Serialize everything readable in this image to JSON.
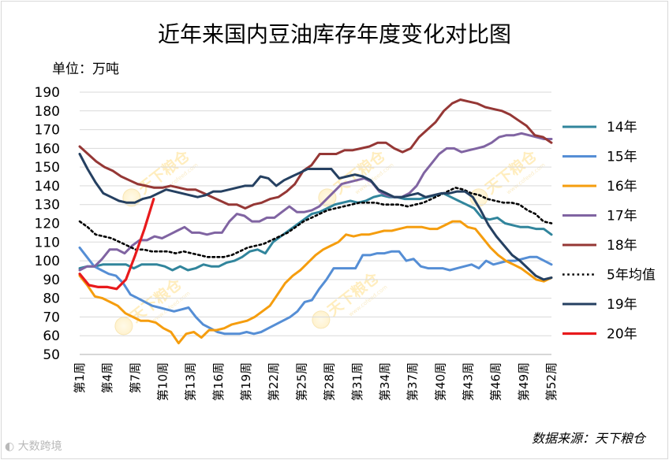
{
  "chart_data": {
    "type": "line",
    "title": "近年来国内豆油库存年度变化对比图",
    "unit_label": "单位：万吨",
    "source": "数据来源：天下粮仓",
    "watermark": "天下粮仓",
    "watermark_url": "www.cofeed.com",
    "corner_logo": "大数跨境",
    "ylim": [
      50,
      190
    ],
    "yticks": [
      50,
      60,
      70,
      80,
      90,
      100,
      110,
      120,
      130,
      140,
      150,
      160,
      170,
      180,
      190
    ],
    "xtick_labels": [
      "第1周",
      "第4周",
      "第7周",
      "第10周",
      "第13周",
      "第16周",
      "第19周",
      "第22周",
      "第25周",
      "第28周",
      "第31周",
      "第34周",
      "第37周",
      "第40周",
      "第43周",
      "第46周",
      "第49周",
      "第52周"
    ],
    "legend_position": "right",
    "series": [
      {
        "name": "14年",
        "color": "#31859c",
        "width": 3,
        "dash": "",
        "values": [
          96,
          97,
          97,
          98,
          98,
          98,
          98,
          96,
          98,
          98,
          98,
          97,
          95,
          97,
          95,
          96,
          98,
          97,
          97,
          99,
          100,
          102,
          105,
          106,
          104,
          110,
          113,
          116,
          119,
          122,
          125,
          126,
          128,
          130,
          131,
          132,
          131,
          132,
          134,
          135,
          134,
          134,
          133,
          133,
          133,
          134,
          135,
          136,
          134,
          132,
          130,
          128,
          123,
          122,
          123,
          120,
          119,
          118,
          118,
          117,
          117,
          114
        ]
      },
      {
        "name": "15年",
        "color": "#558ed5",
        "width": 3,
        "dash": "",
        "values": [
          107,
          102,
          97,
          95,
          93,
          92,
          88,
          82,
          80,
          78,
          76,
          75,
          74,
          73,
          74,
          75,
          70,
          66,
          64,
          62,
          61,
          61,
          61,
          62,
          61,
          62,
          64,
          66,
          68,
          70,
          73,
          78,
          79,
          85,
          90,
          96,
          96,
          96,
          96,
          103,
          103,
          104,
          104,
          105,
          105,
          100,
          101,
          97,
          96,
          96,
          96,
          95,
          96,
          97,
          98,
          96,
          100,
          98,
          99,
          100,
          100,
          101,
          102,
          102,
          100,
          98
        ]
      },
      {
        "name": "16年",
        "color": "#f59d0e",
        "width": 3,
        "dash": "",
        "values": [
          92,
          87,
          81,
          80,
          78,
          76,
          72,
          70,
          68,
          68,
          67,
          64,
          62,
          56,
          61,
          62,
          59,
          63,
          63,
          64,
          66,
          67,
          68,
          70,
          73,
          76,
          82,
          88,
          92,
          95,
          99,
          103,
          106,
          108,
          110,
          114,
          113,
          114,
          114,
          115,
          116,
          116,
          117,
          118,
          118,
          118,
          117,
          117,
          119,
          121,
          121,
          118,
          117,
          112,
          107,
          103,
          100,
          98,
          96,
          93,
          90,
          89,
          91
        ]
      },
      {
        "name": "17年",
        "color": "#8064a2",
        "width": 3,
        "dash": "",
        "values": [
          95,
          97,
          97,
          101,
          106,
          106,
          104,
          108,
          111,
          111,
          113,
          112,
          114,
          116,
          118,
          115,
          115,
          114,
          115,
          115,
          121,
          125,
          124,
          121,
          121,
          123,
          123,
          126,
          129,
          126,
          126,
          127,
          129,
          133,
          137,
          141,
          142,
          143,
          144,
          142,
          137,
          135,
          134,
          134,
          136,
          140,
          147,
          152,
          157,
          160,
          160,
          158,
          159,
          160,
          161,
          163,
          166,
          167,
          167,
          168,
          167,
          166,
          165,
          165
        ]
      },
      {
        "name": "18年",
        "color": "#953735",
        "width": 3,
        "dash": "",
        "values": [
          161,
          157,
          153,
          150,
          148,
          145,
          143,
          141,
          140,
          139,
          139,
          140,
          139,
          138,
          138,
          136,
          134,
          132,
          130,
          130,
          128,
          130,
          131,
          133,
          134,
          137,
          141,
          148,
          151,
          157,
          157,
          157,
          159,
          159,
          160,
          161,
          163,
          163,
          160,
          158,
          160,
          166,
          170,
          174,
          180,
          184,
          186,
          185,
          184,
          182,
          181,
          180,
          178,
          175,
          172,
          167,
          166,
          163
        ]
      },
      {
        "name": "5年均值",
        "color": "#000000",
        "width": 2.6,
        "dash": "2.6,3.6",
        "values": [
          121,
          118,
          114,
          113,
          112,
          110,
          108,
          106,
          106,
          105,
          105,
          105,
          104,
          105,
          104,
          103,
          102,
          102,
          102,
          103,
          105,
          107,
          108,
          109,
          111,
          113,
          115,
          118,
          121,
          123,
          125,
          127,
          128,
          129,
          130,
          131,
          131,
          131,
          130,
          130,
          130,
          129,
          130,
          131,
          133,
          135,
          137,
          139,
          138,
          136,
          135,
          133,
          132,
          131,
          131,
          130,
          127,
          125,
          121,
          120
        ]
      },
      {
        "name": "19年",
        "color": "#254061",
        "width": 3,
        "dash": "",
        "values": [
          157,
          149,
          142,
          136,
          134,
          132,
          131,
          131,
          133,
          134,
          136,
          138,
          137,
          136,
          135,
          134,
          135,
          137,
          137,
          138,
          139,
          140,
          140,
          145,
          144,
          140,
          143,
          145,
          147,
          149,
          149,
          149,
          149,
          144,
          145,
          146,
          145,
          143,
          138,
          136,
          134,
          134,
          135,
          136,
          134,
          135,
          136,
          136,
          137,
          137,
          134,
          127,
          119,
          113,
          108,
          103,
          100,
          96,
          92,
          90,
          91
        ]
      },
      {
        "name": "20年",
        "color": "#e81a1c",
        "width": 3.2,
        "dash": "",
        "values": [
          93,
          87,
          86,
          86,
          85,
          90,
          103,
          117,
          133
        ]
      }
    ]
  }
}
